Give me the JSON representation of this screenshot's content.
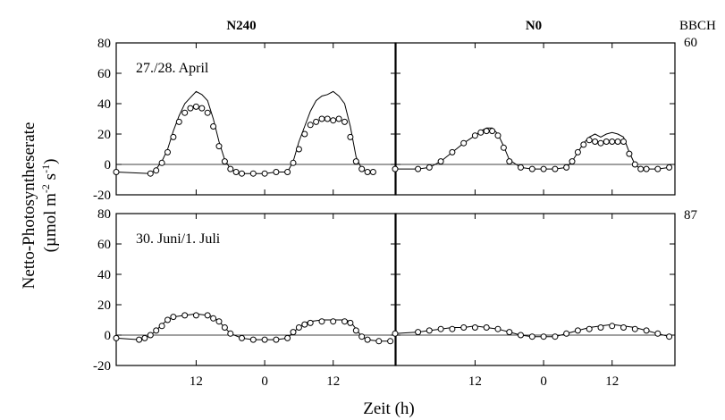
{
  "chart_data": {
    "type": "line",
    "column_headers": [
      "N240",
      "N0"
    ],
    "growth_stage_header": "BBCH",
    "ylabel_line1": "Netto-Photosyntheserate",
    "ylabel_line2": "(µmol m-2 s-1)",
    "xlabel": "Zeit (h)",
    "x_tick_labels": [
      "12",
      "0",
      "12"
    ],
    "x_ticks_hours": [
      12,
      24,
      36
    ],
    "xlim_hours": [
      -2,
      47
    ],
    "ylim": [
      -20,
      80
    ],
    "y_ticks": [
      80,
      60,
      40,
      20,
      0,
      -20
    ],
    "reference_line_y": 0,
    "rows": [
      {
        "period_label": "27./28. April",
        "bbch": "60"
      },
      {
        "period_label": "30. Juni/1. Juli",
        "bbch": "87"
      }
    ],
    "panels": [
      {
        "row": 0,
        "col": 0,
        "series": [
          {
            "style": "line",
            "x": [
              -2,
              4,
              5,
              6,
              7,
              8,
              9,
              10,
              11,
              12,
              13,
              14,
              15,
              16,
              17,
              18,
              19,
              20,
              22,
              24,
              26,
              28,
              29,
              30,
              31,
              32,
              33,
              34,
              35,
              36,
              37,
              38,
              39,
              40,
              41,
              42,
              43
            ],
            "y": [
              -5,
              -6,
              -3,
              2,
              10,
              22,
              32,
              40,
              44,
              48,
              46,
              42,
              30,
              15,
              3,
              -3,
              -5,
              -6,
              -6,
              -6,
              -5,
              -5,
              2,
              15,
              25,
              35,
              42,
              45,
              46,
              48,
              45,
              40,
              25,
              5,
              -3,
              -5,
              -5
            ]
          },
          {
            "style": "markers",
            "x": [
              -2,
              4,
              5,
              6,
              7,
              8,
              9,
              10,
              11,
              12,
              13,
              14,
              15,
              16,
              17,
              18,
              19,
              20,
              22,
              24,
              26,
              28,
              29,
              30,
              31,
              32,
              33,
              34,
              35,
              36,
              37,
              38,
              39,
              40,
              41,
              42,
              43
            ],
            "y": [
              -5,
              -6,
              -4,
              1,
              8,
              18,
              28,
              34,
              37,
              38,
              37,
              34,
              25,
              12,
              2,
              -3,
              -5,
              -6,
              -6,
              -6,
              -5,
              -5,
              1,
              10,
              20,
              26,
              28,
              30,
              30,
              29,
              30,
              28,
              18,
              2,
              -3,
              -5,
              -5
            ]
          }
        ]
      },
      {
        "row": 0,
        "col": 1,
        "series": [
          {
            "style": "line",
            "x": [
              -2,
              2,
              4,
              6,
              8,
              10,
              12,
              13,
              14,
              15,
              16,
              17,
              18,
              20,
              22,
              24,
              26,
              28,
              29,
              30,
              31,
              32,
              33,
              34,
              35,
              36,
              37,
              38,
              39,
              40,
              41,
              42,
              44,
              46
            ],
            "y": [
              -3,
              -3,
              -2,
              2,
              8,
              14,
              19,
              22,
              24,
              24,
              20,
              12,
              3,
              -2,
              -3,
              -3,
              -3,
              -2,
              2,
              8,
              14,
              18,
              20,
              18,
              20,
              21,
              20,
              18,
              8,
              0,
              -3,
              -3,
              -3,
              -2
            ]
          },
          {
            "style": "markers",
            "x": [
              -2,
              2,
              4,
              6,
              8,
              10,
              12,
              13,
              14,
              15,
              16,
              17,
              18,
              20,
              22,
              24,
              26,
              28,
              29,
              30,
              31,
              32,
              33,
              34,
              35,
              36,
              37,
              38,
              39,
              40,
              41,
              42,
              44,
              46
            ],
            "y": [
              -3,
              -3,
              -2,
              2,
              8,
              14,
              19,
              21,
              22,
              22,
              19,
              11,
              2,
              -2,
              -3,
              -3,
              -3,
              -2,
              2,
              8,
              13,
              16,
              15,
              14,
              15,
              15,
              15,
              15,
              7,
              0,
              -3,
              -3,
              -3,
              -2
            ]
          }
        ]
      },
      {
        "row": 1,
        "col": 0,
        "series": [
          {
            "style": "line",
            "x": [
              -2,
              2,
              3,
              4,
              5,
              6,
              7,
              8,
              10,
              12,
              14,
              15,
              16,
              17,
              18,
              20,
              22,
              24,
              26,
              28,
              29,
              30,
              31,
              32,
              34,
              36,
              38,
              39,
              40,
              41,
              42,
              44,
              46
            ],
            "y": [
              -2,
              -3,
              -2,
              0,
              3,
              7,
              10,
              12,
              13,
              14,
              13,
              12,
              9,
              5,
              1,
              -2,
              -3,
              -3,
              -3,
              -2,
              2,
              5,
              8,
              9,
              10,
              10,
              10,
              9,
              4,
              -1,
              -3,
              -4,
              -4
            ]
          },
          {
            "style": "markers",
            "x": [
              -2,
              2,
              3,
              4,
              5,
              6,
              7,
              8,
              10,
              12,
              14,
              15,
              16,
              17,
              18,
              20,
              22,
              24,
              26,
              28,
              29,
              30,
              31,
              32,
              34,
              36,
              38,
              39,
              40,
              41,
              42,
              44,
              46
            ],
            "y": [
              -2,
              -3,
              -2,
              0,
              3,
              6,
              10,
              12,
              13,
              13,
              13,
              11,
              9,
              5,
              1,
              -2,
              -3,
              -3,
              -3,
              -2,
              2,
              5,
              7,
              8,
              9,
              9,
              9,
              8,
              3,
              -1,
              -3,
              -4,
              -4
            ]
          }
        ]
      },
      {
        "row": 1,
        "col": 1,
        "series": [
          {
            "style": "line",
            "x": [
              -2,
              2,
              4,
              6,
              8,
              10,
              12,
              14,
              16,
              18,
              20,
              22,
              24,
              26,
              28,
              30,
              32,
              34,
              36,
              38,
              40,
              42,
              44,
              46
            ],
            "y": [
              1,
              2,
              3,
              4,
              5,
              5,
              6,
              5,
              4,
              2,
              0,
              -1,
              -1,
              -1,
              1,
              3,
              5,
              6,
              7,
              6,
              5,
              3,
              1,
              -1
            ]
          },
          {
            "style": "markers",
            "x": [
              -2,
              2,
              4,
              6,
              8,
              10,
              12,
              14,
              16,
              18,
              20,
              22,
              24,
              26,
              28,
              30,
              32,
              34,
              36,
              38,
              40,
              42,
              44,
              46
            ],
            "y": [
              1,
              2,
              3,
              4,
              4,
              5,
              5,
              5,
              4,
              2,
              0,
              -1,
              -1,
              -1,
              1,
              3,
              4,
              5,
              6,
              5,
              4,
              3,
              1,
              -1
            ]
          }
        ]
      }
    ]
  }
}
